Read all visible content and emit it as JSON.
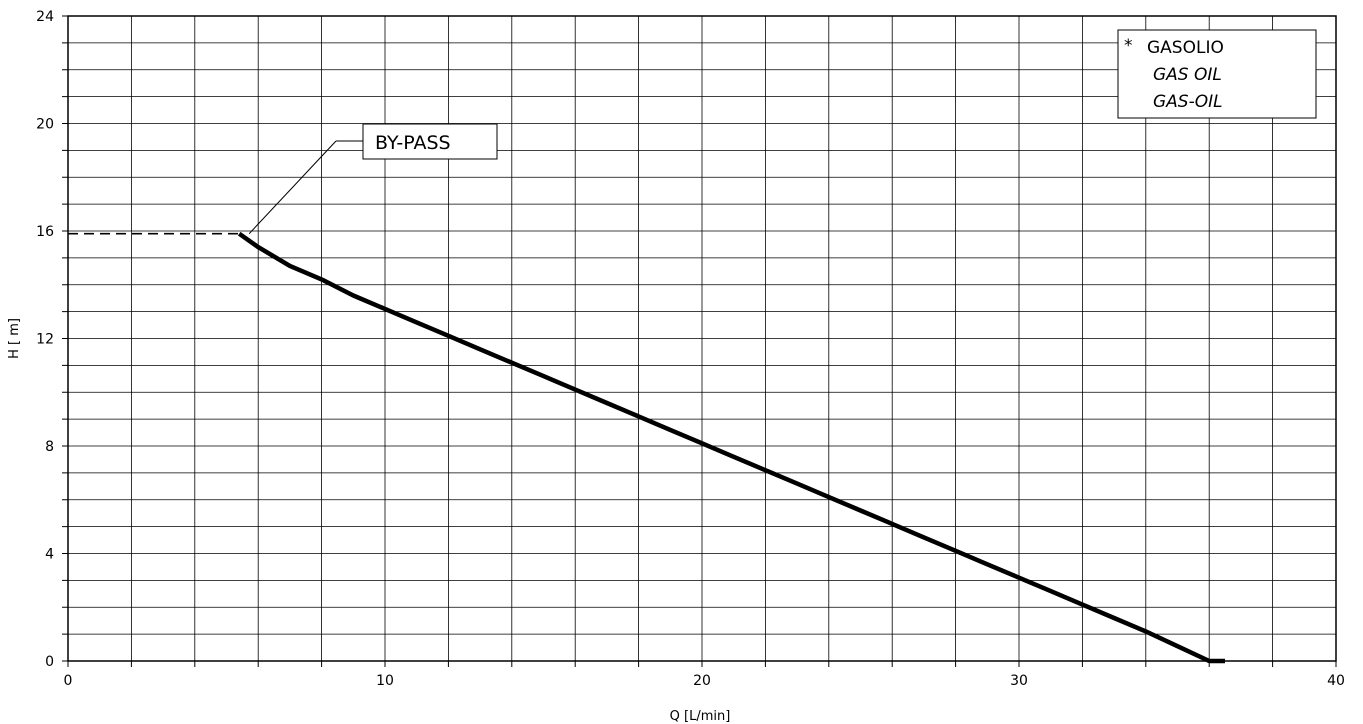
{
  "chart_data": {
    "type": "line",
    "title": "",
    "xlabel": "Q  [L/min]",
    "ylabel": "H  [ m]",
    "xlim": [
      0,
      40
    ],
    "ylim": [
      0,
      24
    ],
    "x_ticks": [
      "0",
      "10",
      "20",
      "30",
      "40"
    ],
    "y_ticks": [
      "0",
      "4",
      "8",
      "12",
      "16",
      "20",
      "24"
    ],
    "grid": true,
    "legend_position": "top-right",
    "legend": {
      "marker": "*",
      "lines": [
        "GASOLIO",
        "GAS OIL",
        "GAS-OIL"
      ]
    },
    "series": [
      {
        "style": "solid",
        "x": [
          5.4,
          6,
          7,
          8,
          9,
          10,
          11,
          12,
          13,
          14,
          15,
          16,
          17,
          18,
          19,
          20,
          21,
          22,
          23,
          24,
          25,
          26,
          27,
          28,
          29,
          30,
          31,
          32,
          33,
          34,
          35,
          36,
          36.5
        ],
        "y": [
          15.9,
          15.4,
          14.7,
          14.2,
          13.6,
          13.1,
          12.6,
          12.1,
          11.6,
          11.1,
          10.6,
          10.1,
          9.6,
          9.1,
          8.6,
          8.1,
          7.6,
          7.1,
          6.6,
          6.1,
          5.6,
          5.1,
          4.6,
          4.1,
          3.6,
          3.1,
          2.6,
          2.1,
          1.6,
          1.1,
          0.55,
          0.0,
          0.0
        ]
      },
      {
        "style": "dashed",
        "x": [
          0,
          5.4
        ],
        "y": [
          15.9,
          15.9
        ]
      }
    ],
    "annotation": {
      "text": "BY-PASS",
      "x": 5.4,
      "y": 15.9
    }
  }
}
